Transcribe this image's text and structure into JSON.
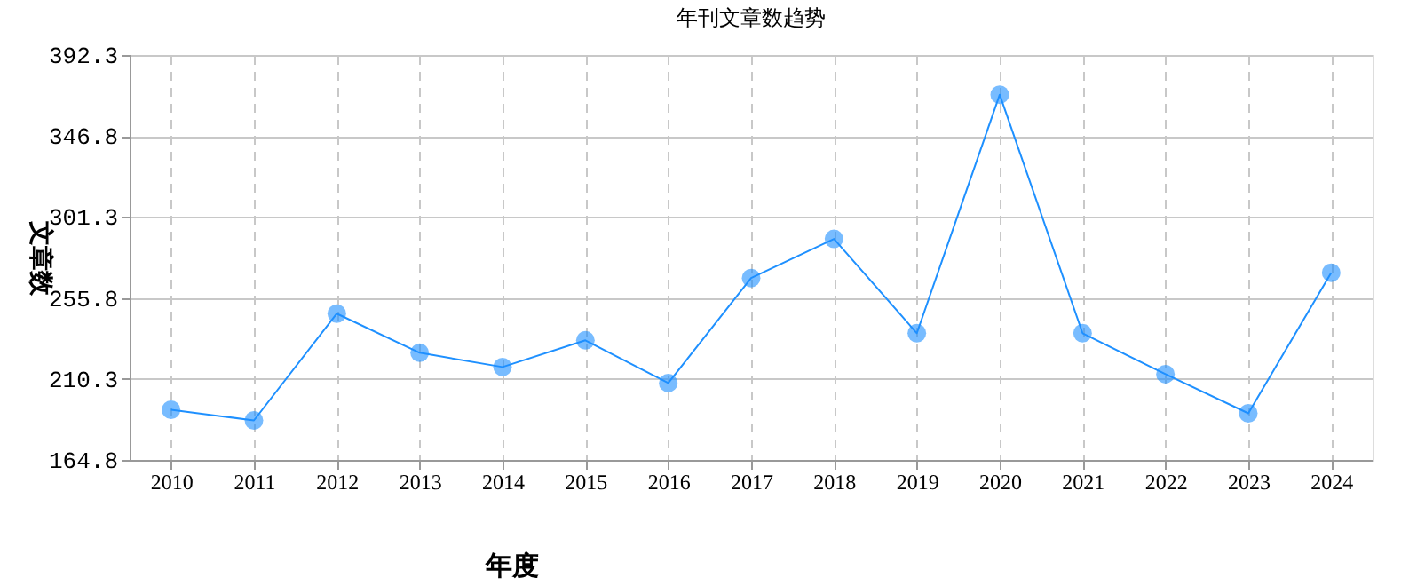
{
  "chart_data": {
    "type": "line",
    "title": "年刊文章数趋势",
    "xlabel": "年度",
    "ylabel": "文章数",
    "categories": [
      "2010",
      "2011",
      "2012",
      "2013",
      "2014",
      "2015",
      "2016",
      "2017",
      "2018",
      "2019",
      "2020",
      "2021",
      "2022",
      "2023",
      "2024"
    ],
    "series": [
      {
        "color": "#1e90ff",
        "values": [
          193,
          187,
          247,
          225,
          217,
          232,
          208,
          267,
          289,
          236,
          370,
          236,
          213,
          191,
          270
        ]
      }
    ],
    "ylim": [
      164.8,
      392.3
    ],
    "yticks": [
      164.8,
      210.3,
      255.8,
      301.3,
      346.8,
      392.3
    ],
    "grid": true,
    "marker": "circle",
    "line_style": "solid",
    "legend": false
  }
}
